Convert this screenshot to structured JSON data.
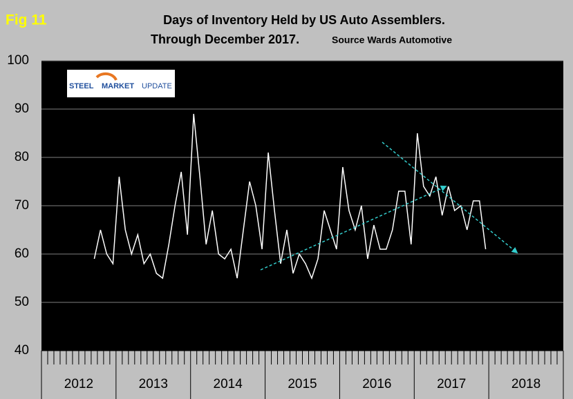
{
  "chart_data": {
    "type": "line",
    "figure_label": "Fig 11",
    "title": "Days of Inventory Held by US Auto Assemblers.",
    "subtitle": "Through December 2017.",
    "source": "Source Wards Automotive",
    "logo": {
      "part1": "STEEL",
      "part2": "MARKET",
      "part3": "UPDATE"
    },
    "year_groups": [
      "2012",
      "2013",
      "2014",
      "2015",
      "2016",
      "2017",
      "2018"
    ],
    "categories": [
      null,
      null,
      null,
      null,
      null,
      null,
      null,
      null,
      null,
      null,
      null,
      null,
      null,
      null,
      null,
      null,
      null,
      null,
      null,
      null,
      null,
      null,
      null,
      null,
      null,
      null,
      null,
      null,
      null,
      null,
      null,
      null,
      null,
      null,
      null,
      null,
      null,
      null,
      null,
      null,
      null,
      null,
      null,
      null,
      null,
      null,
      null,
      null,
      null,
      null,
      null,
      null,
      null,
      null,
      null,
      null,
      null,
      null,
      null,
      null,
      null,
      null,
      null,
      null
    ],
    "values": [
      59,
      65,
      60,
      58,
      76,
      65,
      60,
      64,
      58,
      60,
      56,
      55,
      62,
      70,
      77,
      64,
      89,
      76,
      62,
      69,
      60,
      59,
      61,
      55,
      65,
      75,
      70,
      61,
      81,
      69,
      58,
      65,
      56,
      60,
      58,
      55,
      59,
      69,
      65,
      61,
      78,
      69,
      65,
      70,
      59,
      66,
      61,
      61,
      65,
      73,
      73,
      62,
      85,
      74,
      72,
      76,
      68,
      74,
      69,
      70,
      65,
      71,
      71,
      61
    ],
    "color": "#ffffff",
    "ylim": [
      40,
      100
    ],
    "yticks": [
      40,
      50,
      60,
      70,
      80,
      90,
      100
    ],
    "grid": true
  }
}
